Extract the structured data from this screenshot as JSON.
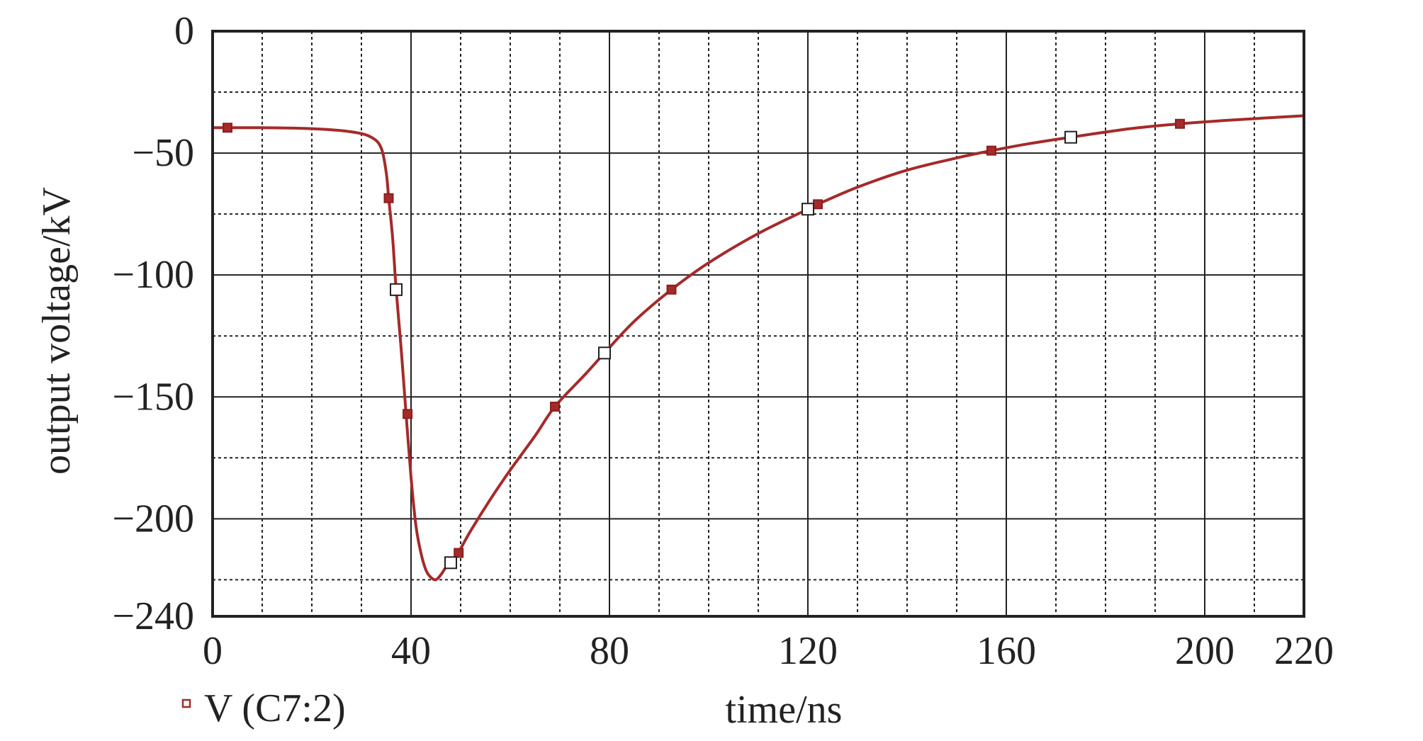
{
  "chart_data": {
    "type": "line",
    "title": "",
    "xlabel": "time/ns",
    "ylabel": "output voltage/kV",
    "xlim": [
      0,
      220
    ],
    "ylim": [
      -240,
      0
    ],
    "x_ticks": [
      0,
      40,
      80,
      120,
      160,
      200,
      220
    ],
    "x_tick_labels": [
      "0",
      "40",
      "80",
      "120",
      "160",
      "200",
      "220"
    ],
    "y_ticks": [
      0,
      -50,
      -100,
      -150,
      -200,
      -240
    ],
    "y_tick_labels": [
      "0",
      "−50",
      "−100",
      "−150",
      "−200",
      "−240"
    ],
    "grid": true,
    "minor_grid_x_step": 10,
    "minor_grid_y_step": 25,
    "legend": {
      "entries": [
        "V (C7:2)"
      ],
      "placement": "bottom-left"
    },
    "series": [
      {
        "name": "V (C7:2)",
        "color": "#a52a2a",
        "x": [
          0,
          10,
          20,
          28,
          32,
          34,
          35,
          35.5,
          36.3,
          37,
          38,
          39,
          40,
          41,
          42,
          43,
          44,
          45,
          46,
          47,
          48,
          49.5,
          52,
          56,
          60,
          65,
          69,
          75,
          79,
          85,
          92.5,
          100,
          110,
          120,
          122,
          130,
          140,
          150,
          157,
          165,
          173,
          185,
          195,
          205,
          220
        ],
        "y": [
          -39.6,
          -39.6,
          -40,
          -41.3,
          -43.5,
          -48,
          -58,
          -68.5,
          -85,
          -106,
          -130,
          -157,
          -183,
          -203,
          -214,
          -221,
          -224,
          -225,
          -223,
          -220,
          -218,
          -214,
          -205,
          -192,
          -180,
          -166,
          -154,
          -141,
          -132,
          -119,
          -106,
          -95,
          -83,
          -73,
          -71,
          -64,
          -57,
          -52,
          -49,
          -46,
          -43.5,
          -40,
          -38,
          -36.5,
          -34.7
        ],
        "filled_markers": [
          [
            3,
            -39.6
          ],
          [
            35.5,
            -68.5
          ],
          [
            39.3,
            -157
          ],
          [
            49.6,
            -214
          ],
          [
            69,
            -154
          ],
          [
            92.5,
            -106
          ],
          [
            122,
            -71
          ],
          [
            157,
            -49
          ],
          [
            195,
            -38
          ]
        ],
        "open_markers": [
          [
            37,
            -106
          ],
          [
            48,
            -218
          ],
          [
            79,
            -132
          ],
          [
            120,
            -73
          ],
          [
            173,
            -43.5
          ]
        ]
      }
    ]
  }
}
